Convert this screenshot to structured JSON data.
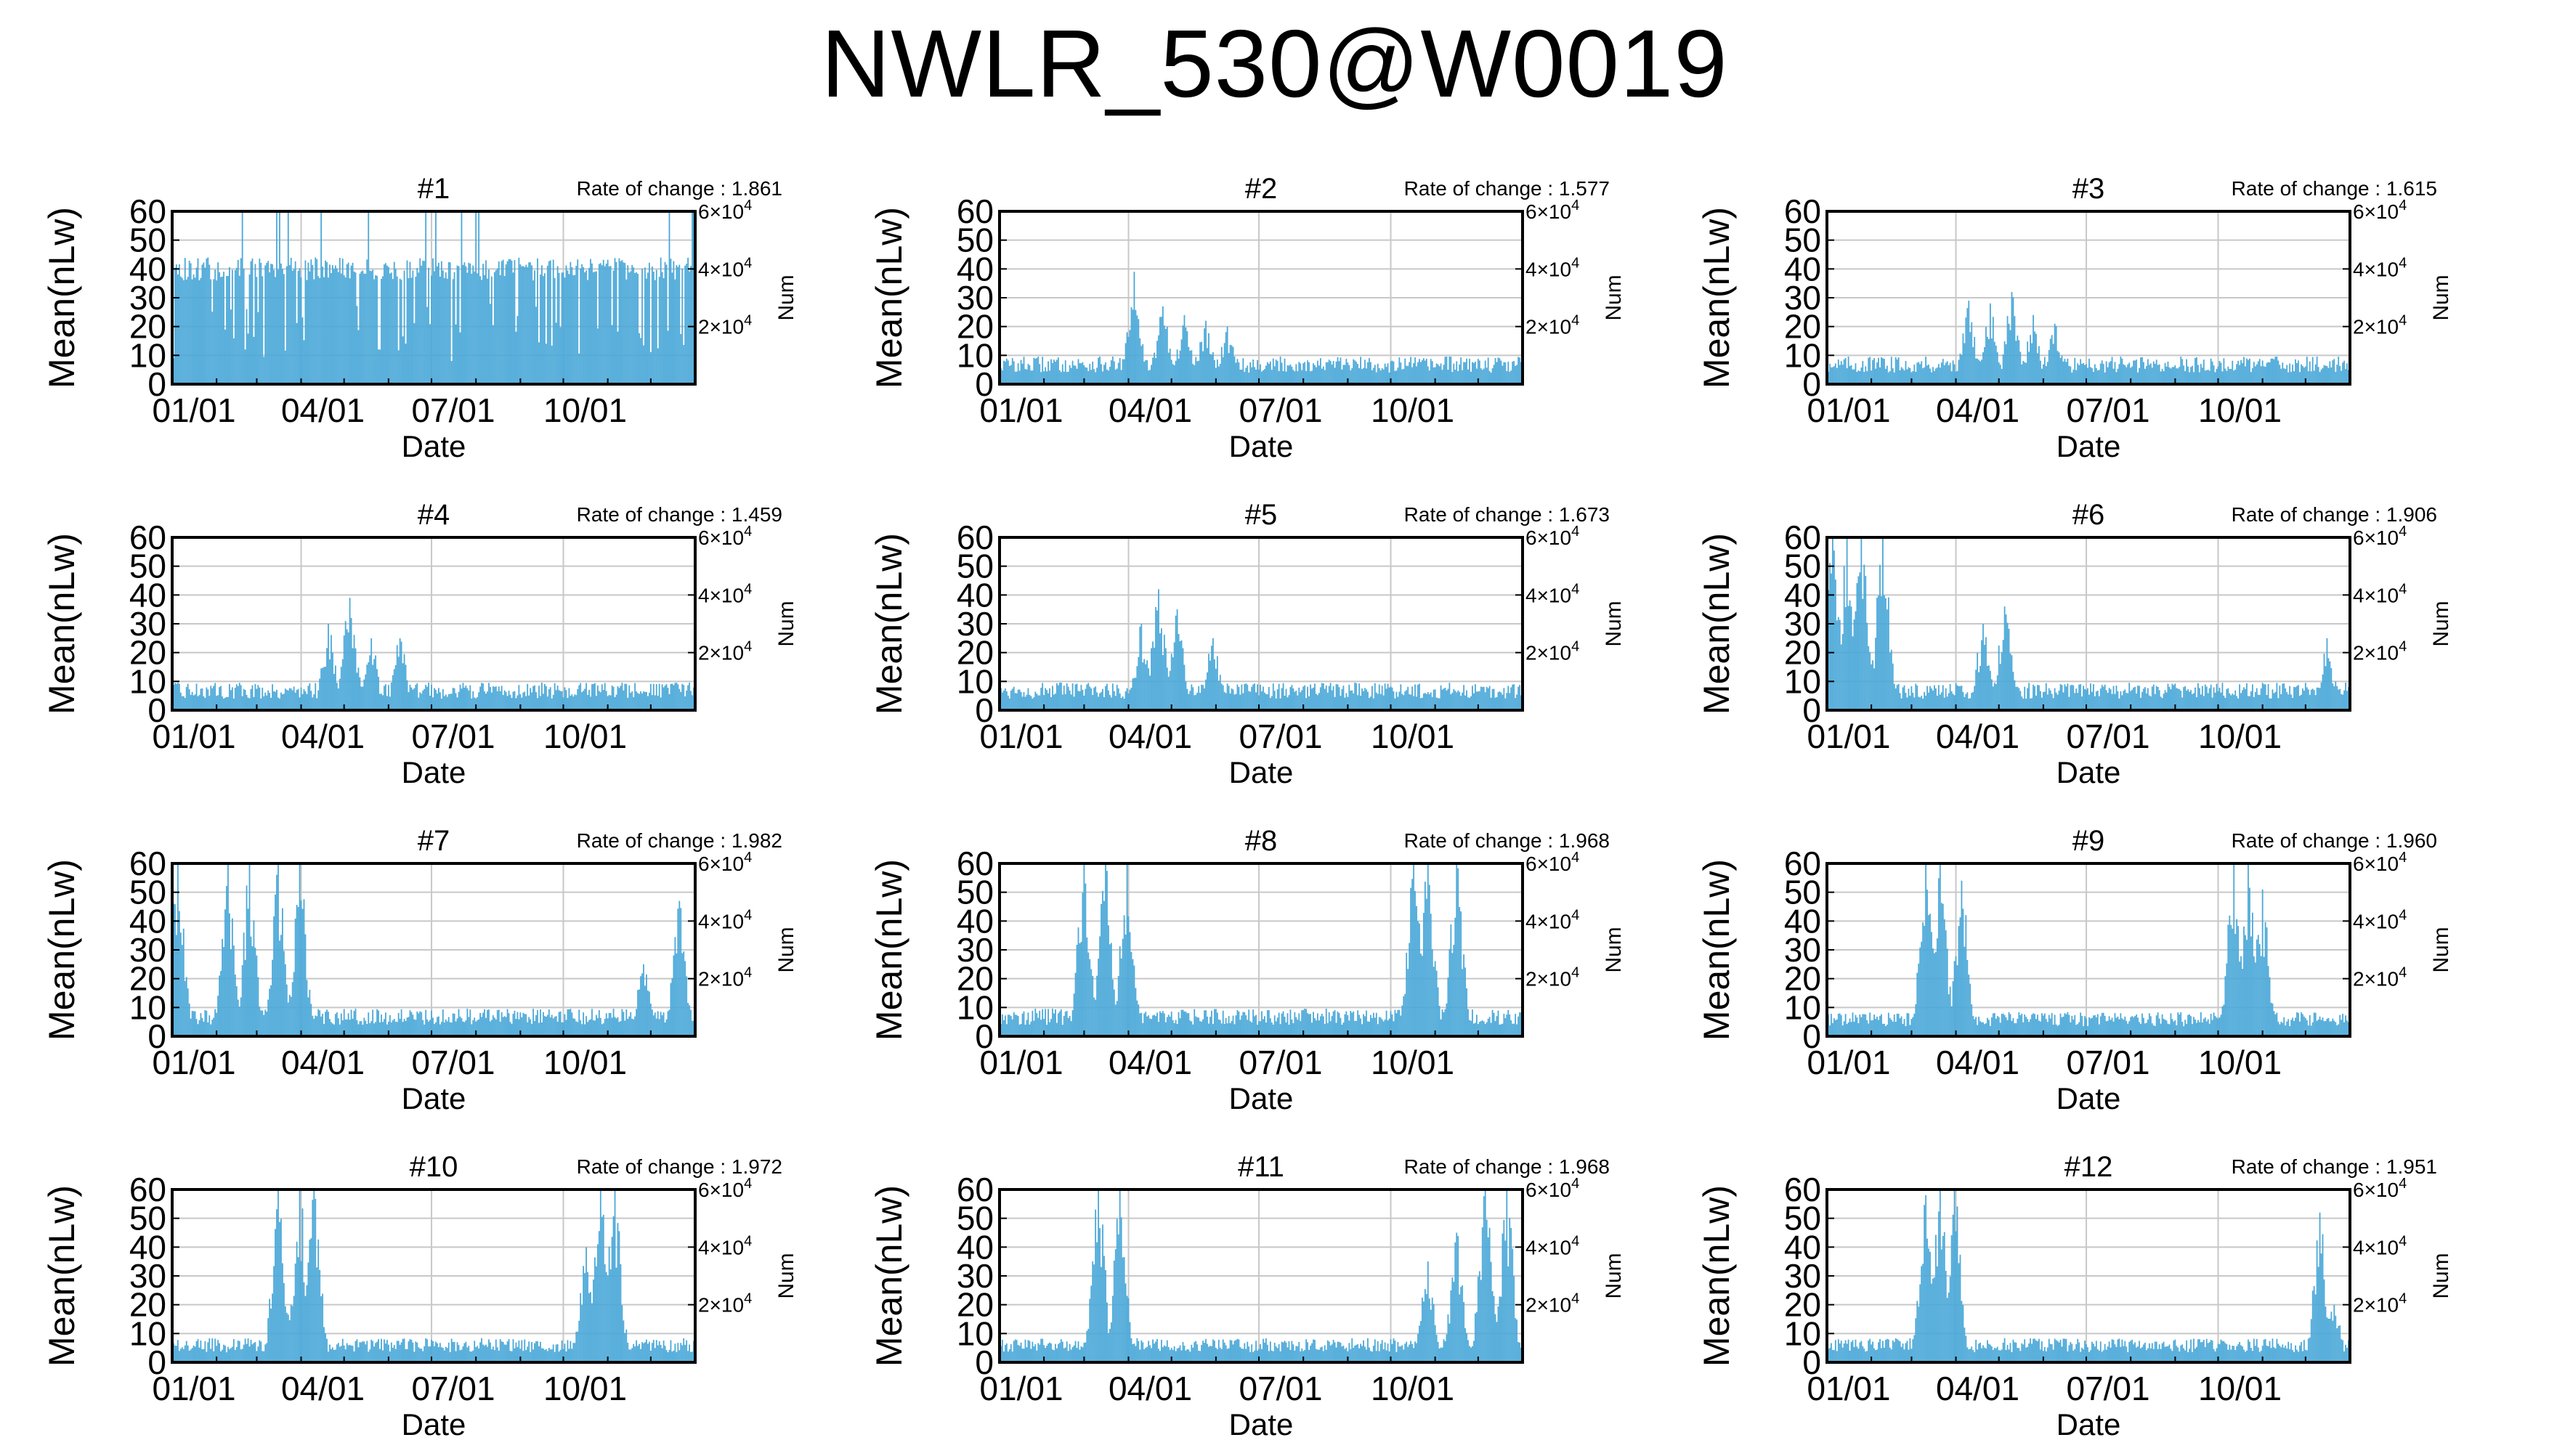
{
  "page": {
    "title": "NWLR_530@W0019"
  },
  "shared_axes": {
    "ylabel": "Mean(nLw)",
    "xlabel": "Date",
    "y2label": "Num",
    "yticks": [
      "0",
      "10",
      "20",
      "30",
      "40",
      "50",
      "60"
    ],
    "xticks": [
      "01/01",
      "04/01",
      "07/01",
      "10/01"
    ],
    "y2ticks": [
      {
        "mant": "2×10",
        "exp": "4",
        "value": 20000
      },
      {
        "mant": "4×10",
        "exp": "4",
        "value": 40000
      },
      {
        "mant": "6×10",
        "exp": "4",
        "value": 60000
      }
    ],
    "rate_prefix": "Rate of change : "
  },
  "chart_data": [
    {
      "type": "bar",
      "title": "#1",
      "rate": "1.861",
      "ylim": [
        0,
        60
      ],
      "y2lim": [
        0,
        60000
      ],
      "xlim_day_of_year": [
        1,
        366
      ],
      "grid": true,
      "series": [
        {
          "name": "",
          "color": "#4aa8d8",
          "baseline": 40,
          "shape": "dense"
        }
      ]
    },
    {
      "type": "bar",
      "title": "#2",
      "rate": "1.577",
      "ylim": [
        0,
        60
      ],
      "y2lim": [
        0,
        60000
      ],
      "xlim_day_of_year": [
        1,
        366
      ],
      "grid": true,
      "series": [
        {
          "name": "",
          "color": "#4aa8d8",
          "baseline": 8,
          "peaks": [
            {
              "day": 95,
              "value": 39
            },
            {
              "day": 115,
              "value": 27
            },
            {
              "day": 130,
              "value": 24
            },
            {
              "day": 145,
              "value": 22
            },
            {
              "day": 160,
              "value": 20
            }
          ]
        }
      ]
    },
    {
      "type": "bar",
      "title": "#3",
      "rate": "1.615",
      "ylim": [
        0,
        60
      ],
      "y2lim": [
        0,
        60000
      ],
      "xlim_day_of_year": [
        1,
        366
      ],
      "grid": true,
      "series": [
        {
          "name": "",
          "color": "#4aa8d8",
          "baseline": 8,
          "peaks": [
            {
              "day": 100,
              "value": 29
            },
            {
              "day": 115,
              "value": 28
            },
            {
              "day": 130,
              "value": 32
            },
            {
              "day": 145,
              "value": 24
            },
            {
              "day": 160,
              "value": 21
            }
          ]
        }
      ]
    },
    {
      "type": "bar",
      "title": "#4",
      "rate": "1.459",
      "ylim": [
        0,
        60
      ],
      "y2lim": [
        0,
        60000
      ],
      "xlim_day_of_year": [
        1,
        366
      ],
      "grid": true,
      "series": [
        {
          "name": "",
          "color": "#4aa8d8",
          "baseline": 8,
          "peaks": [
            {
              "day": 110,
              "value": 30
            },
            {
              "day": 125,
              "value": 39
            },
            {
              "day": 140,
              "value": 25
            },
            {
              "day": 160,
              "value": 25
            }
          ]
        }
      ]
    },
    {
      "type": "bar",
      "title": "#5",
      "rate": "1.673",
      "ylim": [
        0,
        60
      ],
      "y2lim": [
        0,
        60000
      ],
      "xlim_day_of_year": [
        1,
        366
      ],
      "grid": true,
      "series": [
        {
          "name": "",
          "color": "#4aa8d8",
          "baseline": 8,
          "peaks": [
            {
              "day": 100,
              "value": 30
            },
            {
              "day": 112,
              "value": 42
            },
            {
              "day": 125,
              "value": 35
            },
            {
              "day": 150,
              "value": 25
            }
          ]
        }
      ]
    },
    {
      "type": "bar",
      "title": "#6",
      "rate": "1.906",
      "ylim": [
        0,
        60
      ],
      "y2lim": [
        0,
        60000
      ],
      "xlim_day_of_year": [
        1,
        366
      ],
      "grid": true,
      "series": [
        {
          "name": "",
          "color": "#4aa8d8",
          "baseline": 8,
          "peaks": [
            {
              "day": 5,
              "value": 60
            },
            {
              "day": 15,
              "value": 60
            },
            {
              "day": 25,
              "value": 60
            },
            {
              "day": 40,
              "value": 60
            },
            {
              "day": 110,
              "value": 30
            },
            {
              "day": 125,
              "value": 36
            },
            {
              "day": 350,
              "value": 25
            }
          ]
        }
      ]
    },
    {
      "type": "bar",
      "title": "#7",
      "rate": "1.982",
      "ylim": [
        0,
        60
      ],
      "y2lim": [
        0,
        60000
      ],
      "xlim_day_of_year": [
        1,
        366
      ],
      "grid": true,
      "series": [
        {
          "name": "",
          "color": "#4aa8d8",
          "baseline": 8,
          "peaks": [
            {
              "day": 5,
              "value": 60
            },
            {
              "day": 40,
              "value": 60
            },
            {
              "day": 55,
              "value": 60
            },
            {
              "day": 75,
              "value": 60
            },
            {
              "day": 90,
              "value": 60
            },
            {
              "day": 330,
              "value": 25
            },
            {
              "day": 355,
              "value": 47
            }
          ]
        }
      ]
    },
    {
      "type": "bar",
      "title": "#8",
      "rate": "1.968",
      "ylim": [
        0,
        60
      ],
      "y2lim": [
        0,
        60000
      ],
      "xlim_day_of_year": [
        1,
        366
      ],
      "grid": true,
      "series": [
        {
          "name": "",
          "color": "#4aa8d8",
          "baseline": 8,
          "peaks": [
            {
              "day": 60,
              "value": 60
            },
            {
              "day": 75,
              "value": 60
            },
            {
              "day": 90,
              "value": 60
            },
            {
              "day": 290,
              "value": 60
            },
            {
              "day": 300,
              "value": 60
            },
            {
              "day": 320,
              "value": 60
            }
          ]
        }
      ]
    },
    {
      "type": "bar",
      "title": "#9",
      "rate": "1.960",
      "ylim": [
        0,
        60
      ],
      "y2lim": [
        0,
        60000
      ],
      "xlim_day_of_year": [
        1,
        366
      ],
      "grid": true,
      "series": [
        {
          "name": "",
          "color": "#4aa8d8",
          "baseline": 7,
          "peaks": [
            {
              "day": 70,
              "value": 60
            },
            {
              "day": 80,
              "value": 60
            },
            {
              "day": 95,
              "value": 54
            },
            {
              "day": 285,
              "value": 60
            },
            {
              "day": 295,
              "value": 60
            },
            {
              "day": 305,
              "value": 51
            }
          ]
        }
      ]
    },
    {
      "type": "bar",
      "title": "#10",
      "rate": "1.972",
      "ylim": [
        0,
        60
      ],
      "y2lim": [
        0,
        60000
      ],
      "xlim_day_of_year": [
        1,
        366
      ],
      "grid": true,
      "series": [
        {
          "name": "",
          "color": "#4aa8d8",
          "baseline": 7,
          "peaks": [
            {
              "day": 75,
              "value": 60
            },
            {
              "day": 90,
              "value": 60
            },
            {
              "day": 100,
              "value": 60
            },
            {
              "day": 290,
              "value": 40
            },
            {
              "day": 300,
              "value": 60
            },
            {
              "day": 310,
              "value": 60
            }
          ]
        }
      ]
    },
    {
      "type": "bar",
      "title": "#11",
      "rate": "1.968",
      "ylim": [
        0,
        60
      ],
      "y2lim": [
        0,
        60000
      ],
      "xlim_day_of_year": [
        1,
        366
      ],
      "grid": true,
      "series": [
        {
          "name": "",
          "color": "#4aa8d8",
          "baseline": 7,
          "peaks": [
            {
              "day": 70,
              "value": 60
            },
            {
              "day": 85,
              "value": 60
            },
            {
              "day": 300,
              "value": 35
            },
            {
              "day": 320,
              "value": 45
            },
            {
              "day": 340,
              "value": 60
            },
            {
              "day": 355,
              "value": 60
            }
          ]
        }
      ]
    },
    {
      "type": "bar",
      "title": "#12",
      "rate": "1.951",
      "ylim": [
        0,
        60
      ],
      "y2lim": [
        0,
        60000
      ],
      "xlim_day_of_year": [
        1,
        366
      ],
      "grid": true,
      "series": [
        {
          "name": "",
          "color": "#4aa8d8",
          "baseline": 7,
          "peaks": [
            {
              "day": 70,
              "value": 58
            },
            {
              "day": 80,
              "value": 60
            },
            {
              "day": 90,
              "value": 60
            },
            {
              "day": 345,
              "value": 52
            },
            {
              "day": 355,
              "value": 20
            }
          ]
        }
      ]
    }
  ]
}
